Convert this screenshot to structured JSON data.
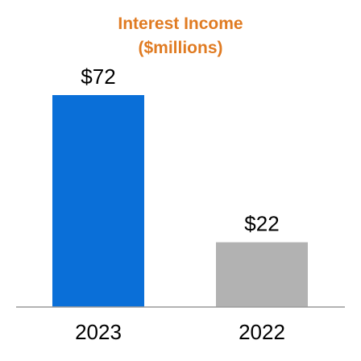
{
  "chart_data": {
    "type": "bar",
    "title": "Interest Income",
    "subtitle": "($millions)",
    "categories": [
      "2023",
      "2022"
    ],
    "values": [
      72,
      22
    ],
    "data_labels": [
      "$72",
      "$22"
    ],
    "ylim": [
      0,
      80
    ],
    "grid": false,
    "legend": "none",
    "xlabel": "",
    "ylabel": ""
  },
  "colors": {
    "title": "#E07B22",
    "bars": [
      "#0A6FD8",
      "#B2B2B2"
    ],
    "axis": "#9A9A9A",
    "text": "#000000"
  }
}
